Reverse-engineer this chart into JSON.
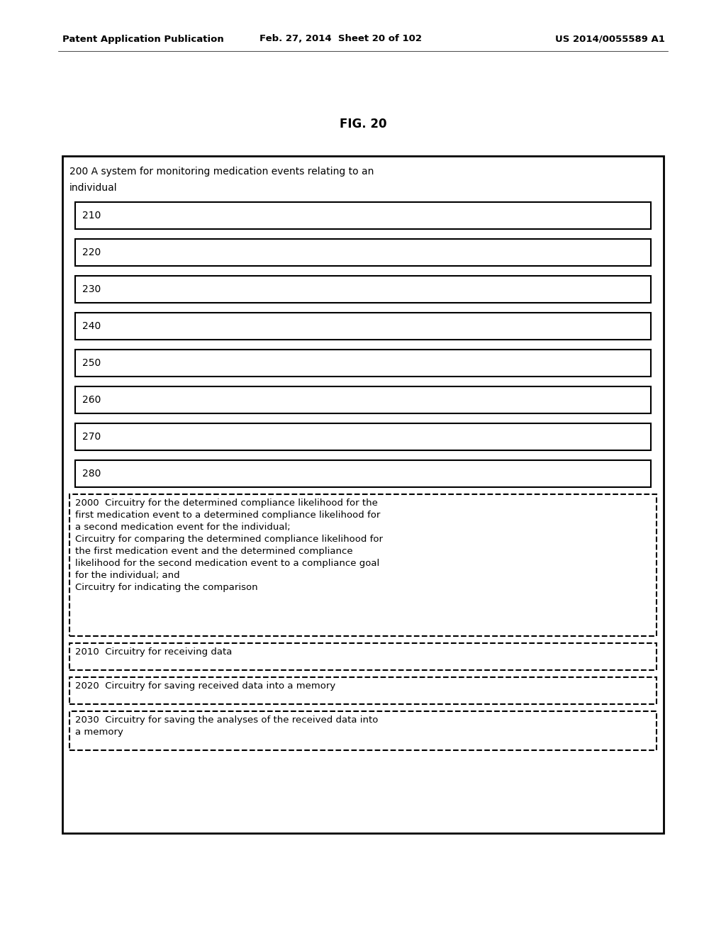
{
  "title": "FIG. 20",
  "header_left": "Patent Application Publication",
  "header_center": "Feb. 27, 2014  Sheet 20 of 102",
  "header_right": "US 2014/0055589 A1",
  "bg_color": "#ffffff",
  "outer_box_label_line1": "200 A system for monitoring medication events relating to an",
  "outer_box_label_line2": "individual",
  "solid_boxes": [
    "210",
    "220",
    "230",
    "240",
    "250",
    "260",
    "270",
    "280"
  ],
  "dashed_boxes": [
    "2000  Circuitry for the determined compliance likelihood for the\nfirst medication event to a determined compliance likelihood for\na second medication event for the individual;\nCircuitry for comparing the determined compliance likelihood for\nthe first medication event and the determined compliance\nlikelihood for the second medication event to a compliance goal\nfor the individual; and\nCircuitry for indicating the comparison",
    "2010  Circuitry for receiving data",
    "2020  Circuitry for saving received data into a memory",
    "2030  Circuitry for saving the analyses of the received data into\na memory"
  ],
  "font_size_header": 9.5,
  "font_size_title": 12,
  "font_size_label": 10,
  "font_size_box": 10,
  "font_size_dashed": 9.5
}
